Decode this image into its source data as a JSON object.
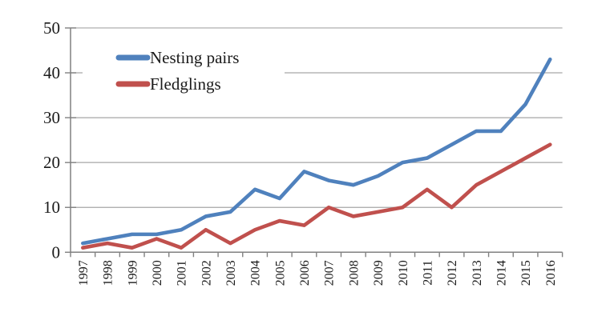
{
  "chart_data": {
    "type": "line",
    "title": "",
    "xlabel": "",
    "ylabel": "",
    "categories": [
      "1997",
      "1998",
      "1999",
      "2000",
      "2001",
      "2002",
      "2003",
      "2004",
      "2005",
      "2006",
      "2007",
      "2008",
      "2009",
      "2010",
      "2011",
      "2012",
      "2013",
      "2014",
      "2015",
      "2016"
    ],
    "series": [
      {
        "name": "Nesting pairs",
        "color": "#4F81BD",
        "values": [
          2,
          3,
          4,
          4,
          5,
          8,
          9,
          14,
          12,
          18,
          16,
          15,
          17,
          20,
          21,
          24,
          27,
          27,
          33,
          43
        ]
      },
      {
        "name": "Fledglings",
        "color": "#C0504D",
        "values": [
          1,
          2,
          1,
          3,
          1,
          5,
          2,
          5,
          7,
          6,
          10,
          8,
          9,
          10,
          14,
          10,
          15,
          18,
          21,
          24
        ]
      }
    ],
    "y_ticks": [
      0,
      10,
      20,
      30,
      40,
      50
    ],
    "ylim": [
      0,
      50
    ],
    "grid": "horizontal",
    "legend_position": "top-left-inside"
  },
  "colors": {
    "background": "#ffffff",
    "gridline": "#a6a6a6",
    "axis": "#808080",
    "text": "#1a1a1a",
    "legend_background": "#ffffff"
  }
}
